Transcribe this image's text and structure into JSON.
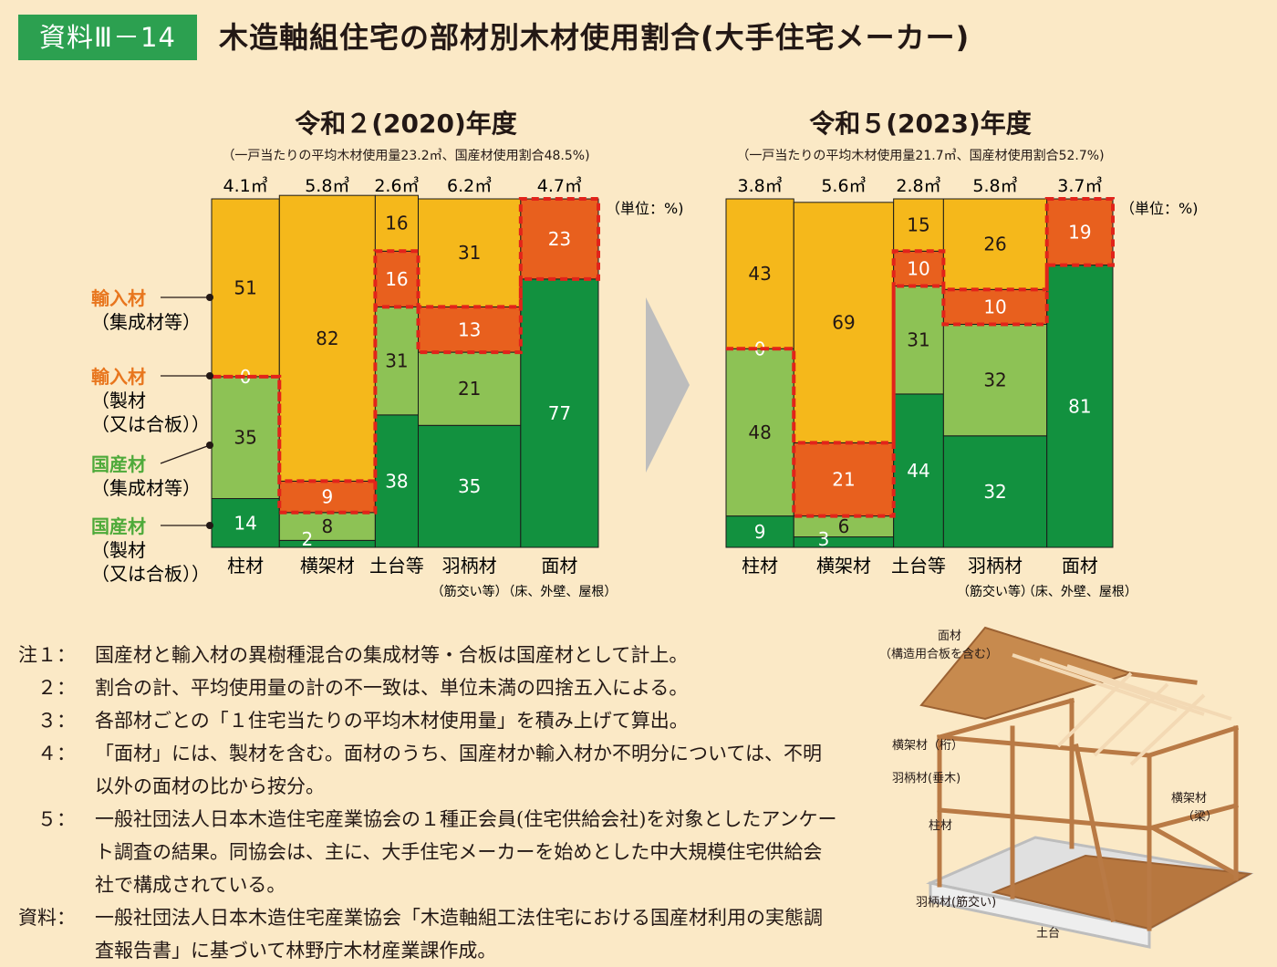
{
  "header": {
    "badge": "資料Ⅲ－14",
    "title": "木造軸組住宅の部材別木材使用割合(大手住宅メーカー)"
  },
  "panels": [
    {
      "title": "令和２(2020)年度",
      "subtitle": "（一戸当たりの平均木材使用量23.2㎥、国産材使用割合48.5%)",
      "unit": "（単位：%)"
    },
    {
      "title": "令和５(2023)年度",
      "subtitle": "（一戸当たりの平均木材使用量21.7㎥、国産材使用割合52.7%)",
      "unit": "（単位：%)"
    }
  ],
  "legend": [
    {
      "main": "輸入材",
      "sub": [
        "（集成材等）"
      ]
    },
    {
      "main": "輸入材",
      "sub": [
        "（製材",
        "（又は合板））"
      ]
    },
    {
      "main": "国産材",
      "sub": [
        "（集成材等）"
      ]
    },
    {
      "main": "国産材",
      "sub": [
        "（製材",
        "（又は合板））"
      ]
    }
  ],
  "colors": {
    "imported_glulam": "#f5b81b",
    "imported_lumber": "#e8601e",
    "domestic_glulam": "#8dc255",
    "domestic_lumber": "#12913f",
    "dashed_border": "#e2231a",
    "legend_imported_text": "#e8761e",
    "legend_domestic_text": "#4eaa3a",
    "badge": "#2ca050",
    "arrow": "#bdbdbd"
  },
  "chart_data": [
    {
      "type": "bar",
      "subtype": "mekko_100_stacked",
      "title": "令和２(2020)年度",
      "subtitle": "（一戸当たりの平均木材使用量23.2㎥、国産材使用割合48.5%)",
      "unit": "（単位：%)",
      "categories": [
        "柱材",
        "横架材",
        "土台等",
        "羽柄材",
        "面材"
      ],
      "category_sublabels": [
        "",
        "",
        "",
        "（筋交い等）",
        "（床、外壁、屋根）"
      ],
      "volumes_m3": [
        4.1,
        5.8,
        2.6,
        6.2,
        4.7
      ],
      "volume_labels": [
        "4.1㎥",
        "5.8㎥",
        "2.6㎥",
        "6.2㎥",
        "4.7㎥"
      ],
      "series": [
        {
          "name": "国産材（製材（又は合板））",
          "values": [
            14,
            2,
            38,
            35,
            77
          ]
        },
        {
          "name": "国産材（集成材等）",
          "values": [
            35,
            8,
            31,
            21,
            0
          ]
        },
        {
          "name": "輸入材（製材（又は合板））",
          "values": [
            0,
            9,
            16,
            13,
            23
          ]
        },
        {
          "name": "輸入材（集成材等）",
          "values": [
            51,
            82,
            16,
            31,
            0
          ]
        }
      ]
    },
    {
      "type": "bar",
      "subtype": "mekko_100_stacked",
      "title": "令和５(2023)年度",
      "subtitle": "（一戸当たりの平均木材使用量21.7㎥、国産材使用割合52.7%)",
      "unit": "（単位：%)",
      "categories": [
        "柱材",
        "横架材",
        "土台等",
        "羽柄材",
        "面材"
      ],
      "category_sublabels": [
        "",
        "",
        "",
        "（筋交い等）",
        "（床、外壁、屋根）"
      ],
      "volumes_m3": [
        3.8,
        5.6,
        2.8,
        5.8,
        3.7
      ],
      "volume_labels": [
        "3.8㎥",
        "5.6㎥",
        "2.8㎥",
        "5.8㎥",
        "3.7㎥"
      ],
      "series": [
        {
          "name": "国産材（製材（又は合板））",
          "values": [
            9,
            3,
            44,
            32,
            81
          ]
        },
        {
          "name": "国産材（集成材等）",
          "values": [
            48,
            6,
            31,
            32,
            0
          ]
        },
        {
          "name": "輸入材（製材（又は合板））",
          "values": [
            0,
            21,
            10,
            10,
            19
          ]
        },
        {
          "name": "輸入材（集成材等）",
          "values": [
            43,
            69,
            15,
            26,
            0
          ]
        }
      ]
    }
  ],
  "notes": [
    {
      "key": "注１：",
      "text": "国産材と輸入材の異樹種混合の集成材等・合板は国産材として計上。"
    },
    {
      "key": "　２：",
      "text": "割合の計、平均使用量の計の不一致は、単位未満の四捨五入による。"
    },
    {
      "key": "　３：",
      "text": "各部材ごとの「１住宅当たりの平均木材使用量」を積み上げて算出。"
    },
    {
      "key": "　４：",
      "text": "「面材」には、製材を含む。面材のうち、国産材か輸入材か不明分については、不明以外の面材の比から按分。"
    },
    {
      "key": "　５：",
      "text": "一般社団法人日本木造住宅産業協会の１種正会員(住宅供給会社)を対象としたアンケート調査の結果。同協会は、主に、大手住宅メーカーを始めとした中大規模住宅供給会社で構成されている。"
    },
    {
      "key": "資料：",
      "text": "一般社団法人日本木造住宅産業協会「木造軸組工法住宅における国産材利用の実態調査報告書」に基づいて林野庁木材産業課作成。"
    }
  ],
  "illustration": {
    "labels": [
      "面材",
      "（構造用合板を含む）",
      "横架材（桁）",
      "羽柄材(垂木)",
      "柱材",
      "横架材",
      "（梁）",
      "羽柄材(筋交い)",
      "土台"
    ]
  }
}
